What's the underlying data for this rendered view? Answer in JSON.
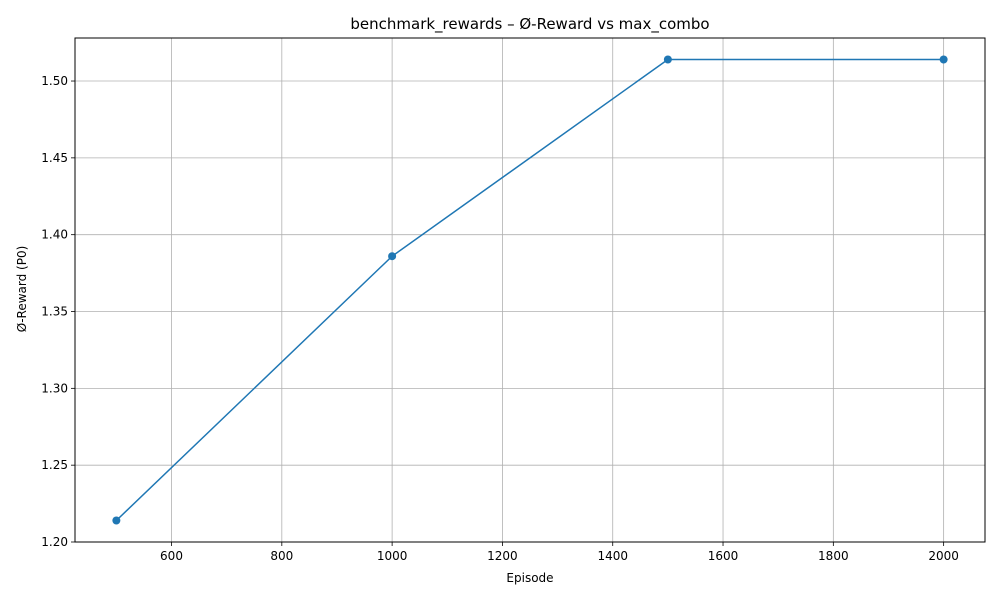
{
  "chart_data": {
    "type": "line",
    "title": "benchmark_rewards – Ø-Reward vs max_combo",
    "xlabel": "Episode",
    "ylabel": "Ø-Reward (P0)",
    "x": [
      500,
      1000,
      1500,
      2000
    ],
    "series": [
      {
        "values": [
          1.214,
          1.386,
          1.514,
          1.514
        ],
        "color": "#1f77b4",
        "marker": "circle"
      }
    ],
    "xlim": [
      425,
      2075
    ],
    "ylim": [
      1.2,
      1.528
    ],
    "xticks": [
      600,
      800,
      1000,
      1200,
      1400,
      1600,
      1800,
      2000
    ],
    "xtick_labels": [
      "600",
      "800",
      "1000",
      "1200",
      "1400",
      "1600",
      "1800",
      "2000"
    ],
    "yticks": [
      1.2,
      1.25,
      1.3,
      1.35,
      1.4,
      1.45,
      1.5
    ],
    "ytick_labels": [
      "1.20",
      "1.25",
      "1.30",
      "1.35",
      "1.40",
      "1.45",
      "1.50"
    ],
    "grid": true,
    "grid_color": "#b0b0b0",
    "legend": "none"
  }
}
